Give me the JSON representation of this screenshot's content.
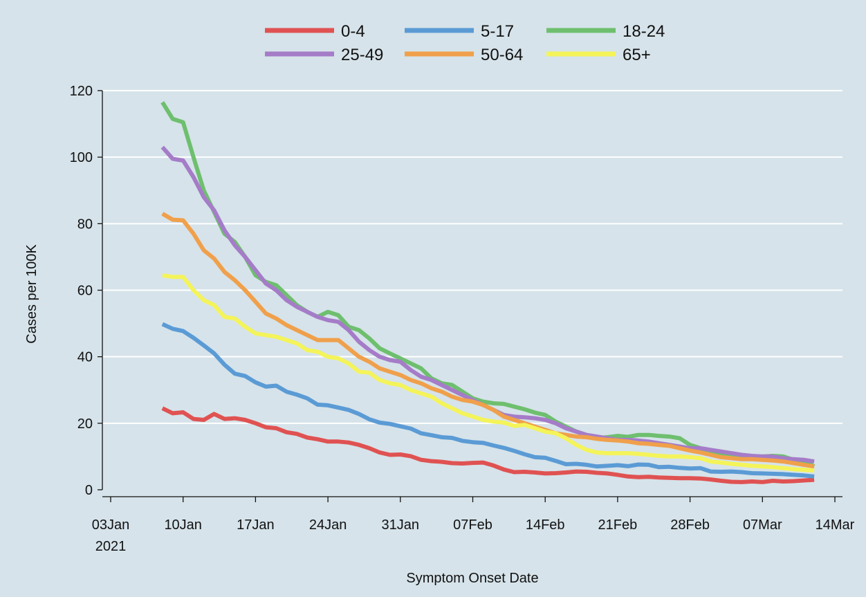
{
  "colors": {
    "background": "#d6e3ea",
    "grid": "#ffffff",
    "axis": "#111111"
  },
  "chart_data": {
    "type": "line",
    "xlabel": "Symptom Onset Date",
    "ylabel": "Cases per 100K",
    "ylim": [
      0,
      120
    ],
    "yticks": [
      0,
      20,
      40,
      60,
      80,
      100,
      120
    ],
    "xlim": [
      "2021-01-03",
      "2021-03-14"
    ],
    "xticks": [
      {
        "date": "2021-01-03",
        "label": "03Jan",
        "sublabel": "2021"
      },
      {
        "date": "2021-01-10",
        "label": "10Jan"
      },
      {
        "date": "2021-01-17",
        "label": "17Jan"
      },
      {
        "date": "2021-01-24",
        "label": "24Jan"
      },
      {
        "date": "2021-01-31",
        "label": "31Jan"
      },
      {
        "date": "2021-02-07",
        "label": "07Feb"
      },
      {
        "date": "2021-02-14",
        "label": "14Feb"
      },
      {
        "date": "2021-02-21",
        "label": "21Feb"
      },
      {
        "date": "2021-02-28",
        "label": "28Feb"
      },
      {
        "date": "2021-03-07",
        "label": "07Mar"
      },
      {
        "date": "2021-03-14",
        "label": "14Mar"
      }
    ],
    "grid": true,
    "legend_position": "top",
    "x": [
      "2021-01-08",
      "2021-01-09",
      "2021-01-10",
      "2021-01-11",
      "2021-01-12",
      "2021-01-13",
      "2021-01-14",
      "2021-01-15",
      "2021-01-16",
      "2021-01-17",
      "2021-01-18",
      "2021-01-19",
      "2021-01-20",
      "2021-01-21",
      "2021-01-22",
      "2021-01-23",
      "2021-01-24",
      "2021-01-25",
      "2021-01-26",
      "2021-01-27",
      "2021-01-28",
      "2021-01-29",
      "2021-01-30",
      "2021-01-31",
      "2021-02-01",
      "2021-02-02",
      "2021-02-03",
      "2021-02-04",
      "2021-02-05",
      "2021-02-06",
      "2021-02-07",
      "2021-02-08",
      "2021-02-09",
      "2021-02-10",
      "2021-02-11",
      "2021-02-12",
      "2021-02-13",
      "2021-02-14",
      "2021-02-15",
      "2021-02-16",
      "2021-02-17",
      "2021-02-18",
      "2021-02-19",
      "2021-02-20",
      "2021-02-21",
      "2021-02-22",
      "2021-02-23",
      "2021-02-24",
      "2021-02-25",
      "2021-02-26",
      "2021-02-27",
      "2021-02-28",
      "2021-03-01",
      "2021-03-02",
      "2021-03-03",
      "2021-03-04",
      "2021-03-05",
      "2021-03-06",
      "2021-03-07",
      "2021-03-08",
      "2021-03-09",
      "2021-03-10",
      "2021-03-11",
      "2021-03-12"
    ],
    "series": [
      {
        "name": "0-4",
        "color": "#e05252",
        "values": [
          24.5,
          23,
          23.3,
          21.3,
          21,
          22.8,
          21.3,
          21.5,
          21,
          20,
          18.8,
          18.5,
          17.3,
          16.8,
          15.7,
          15.2,
          14.5,
          14.5,
          14.2,
          13.5,
          12.5,
          11.2,
          10.5,
          10.6,
          10.1,
          9,
          8.6,
          8.4,
          8,
          7.9,
          8.1,
          8.2,
          7.3,
          6.1,
          5.3,
          5.4,
          5.2,
          4.9,
          5,
          5.2,
          5.5,
          5.4,
          5.1,
          4.9,
          4.5,
          4,
          3.8,
          3.9,
          3.7,
          3.6,
          3.5,
          3.5,
          3.4,
          3.1,
          2.7,
          2.4,
          2.3,
          2.5,
          2.3,
          2.7,
          2.5,
          2.6,
          2.8,
          3
        ]
      },
      {
        "name": "5-17",
        "color": "#5b9bd5",
        "values": [
          49.8,
          48.4,
          47.7,
          45.7,
          43.4,
          41,
          37.6,
          34.9,
          34.2,
          32.3,
          31,
          31.3,
          29.5,
          28.6,
          27.5,
          25.6,
          25.4,
          24.7,
          24,
          22.8,
          21.2,
          20.2,
          19.8,
          19.1,
          18.4,
          17,
          16.4,
          15.8,
          15.6,
          14.7,
          14.3,
          14.1,
          13.3,
          12.6,
          11.7,
          10.7,
          9.8,
          9.6,
          8.7,
          7.7,
          7.8,
          7.5,
          7,
          7.2,
          7.4,
          7.1,
          7.6,
          7.5,
          6.8,
          6.9,
          6.6,
          6.4,
          6.5,
          5.5,
          5.4,
          5.5,
          5.3,
          5,
          4.9,
          4.8,
          4.7,
          4.5,
          4.3,
          4
        ]
      },
      {
        "name": "18-24",
        "color": "#6ebf6e",
        "values": [
          116.5,
          111.5,
          110.5,
          100,
          90,
          83.5,
          77,
          74.5,
          70,
          64.5,
          62.5,
          61.5,
          58.5,
          55.5,
          53.5,
          52,
          53.5,
          52.5,
          49,
          48,
          45.5,
          42.5,
          41,
          39.5,
          38,
          36.5,
          33.5,
          32,
          31.5,
          29.5,
          27.5,
          26.5,
          26,
          25.8,
          25,
          24.2,
          23.2,
          22.5,
          20.5,
          19,
          17.5,
          16.5,
          15.5,
          15.8,
          16.2,
          15.9,
          16.5,
          16.5,
          16.2,
          16,
          15.5,
          13.5,
          12.5,
          11.5,
          11,
          10.5,
          10,
          10,
          10,
          10.2,
          10,
          9,
          8.5,
          7
        ]
      },
      {
        "name": "25-49",
        "color": "#a57cc8",
        "values": [
          103,
          99.5,
          99,
          94,
          88,
          84,
          78,
          73.5,
          70,
          66,
          62,
          60,
          57,
          55,
          53.5,
          52,
          51,
          50.5,
          48,
          44.5,
          42,
          40,
          39,
          38.5,
          36,
          34,
          33,
          31.5,
          30,
          28.5,
          27,
          25.5,
          24,
          22.5,
          22,
          21.8,
          21.5,
          21,
          20,
          18.5,
          17.5,
          16.5,
          16,
          15.5,
          15,
          15,
          14.8,
          14.5,
          14,
          13.5,
          13,
          12.5,
          12.5,
          12,
          11.5,
          11,
          10.5,
          10.2,
          10,
          10,
          9.5,
          9.2,
          9,
          8.5
        ]
      },
      {
        "name": "50-64",
        "color": "#f0a04b",
        "values": [
          83,
          81.2,
          81,
          77,
          72,
          69.5,
          65.5,
          63,
          60,
          56.5,
          53,
          51.5,
          49.5,
          48,
          46.5,
          45,
          45,
          45,
          42.5,
          40,
          38.5,
          36.5,
          35.5,
          34.5,
          33,
          32,
          30.5,
          29.5,
          28,
          27,
          26.5,
          25.5,
          24,
          22,
          21,
          20,
          19,
          18,
          17,
          16.5,
          16,
          15.8,
          15.3,
          15,
          14.8,
          14.5,
          14,
          13.8,
          13.5,
          13.2,
          12.5,
          11.8,
          11.2,
          10.5,
          9.8,
          9.5,
          9.2,
          9.2,
          9,
          8.8,
          8.5,
          8,
          7.5,
          7
        ]
      },
      {
        "name": "65+",
        "color": "#f4f45a",
        "values": [
          64.5,
          64,
          64,
          60,
          57,
          55.5,
          52,
          51.5,
          49,
          47,
          46.5,
          46,
          45,
          44,
          42,
          41.5,
          40,
          39.5,
          38,
          35.5,
          35.2,
          33,
          32,
          31.5,
          30,
          29,
          28,
          26,
          24.5,
          23,
          22,
          21,
          20.5,
          20.2,
          19.2,
          19.5,
          18.5,
          17.5,
          17,
          15.5,
          13.5,
          12,
          11.2,
          11,
          11,
          11,
          10.8,
          10.5,
          10.2,
          10,
          10,
          9.8,
          9.5,
          8.5,
          8.2,
          7.8,
          7.5,
          7.2,
          7,
          6.8,
          6.5,
          6.2,
          6,
          5.8
        ]
      }
    ]
  }
}
